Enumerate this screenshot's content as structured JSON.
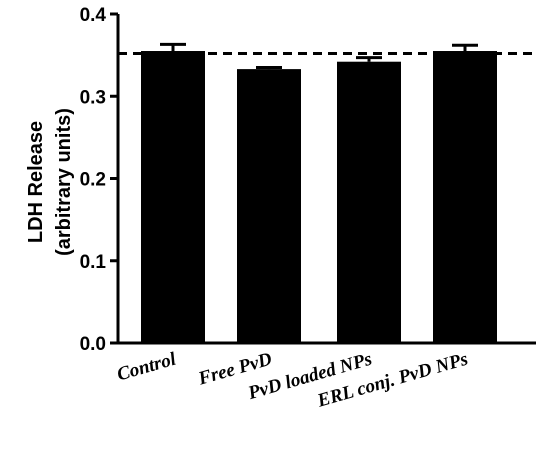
{
  "chart_data": {
    "type": "bar",
    "categories": [
      "Control",
      "Free PvD",
      "PvD loaded NPs",
      "ERL conj. PvD NPs"
    ],
    "values": [
      0.355,
      0.333,
      0.342,
      0.355
    ],
    "errors": [
      0.008,
      0.002,
      0.005,
      0.007
    ],
    "ylabel_line1": "LDH Release",
    "ylabel_line2": "(arbitrary  units)",
    "ylim": [
      0,
      0.4
    ],
    "yticks": [
      "0.0",
      "0.1",
      "0.2",
      "0.3",
      "0.4"
    ],
    "reference_line": 0.352,
    "bar_color": "#000000",
    "grid": false
  }
}
